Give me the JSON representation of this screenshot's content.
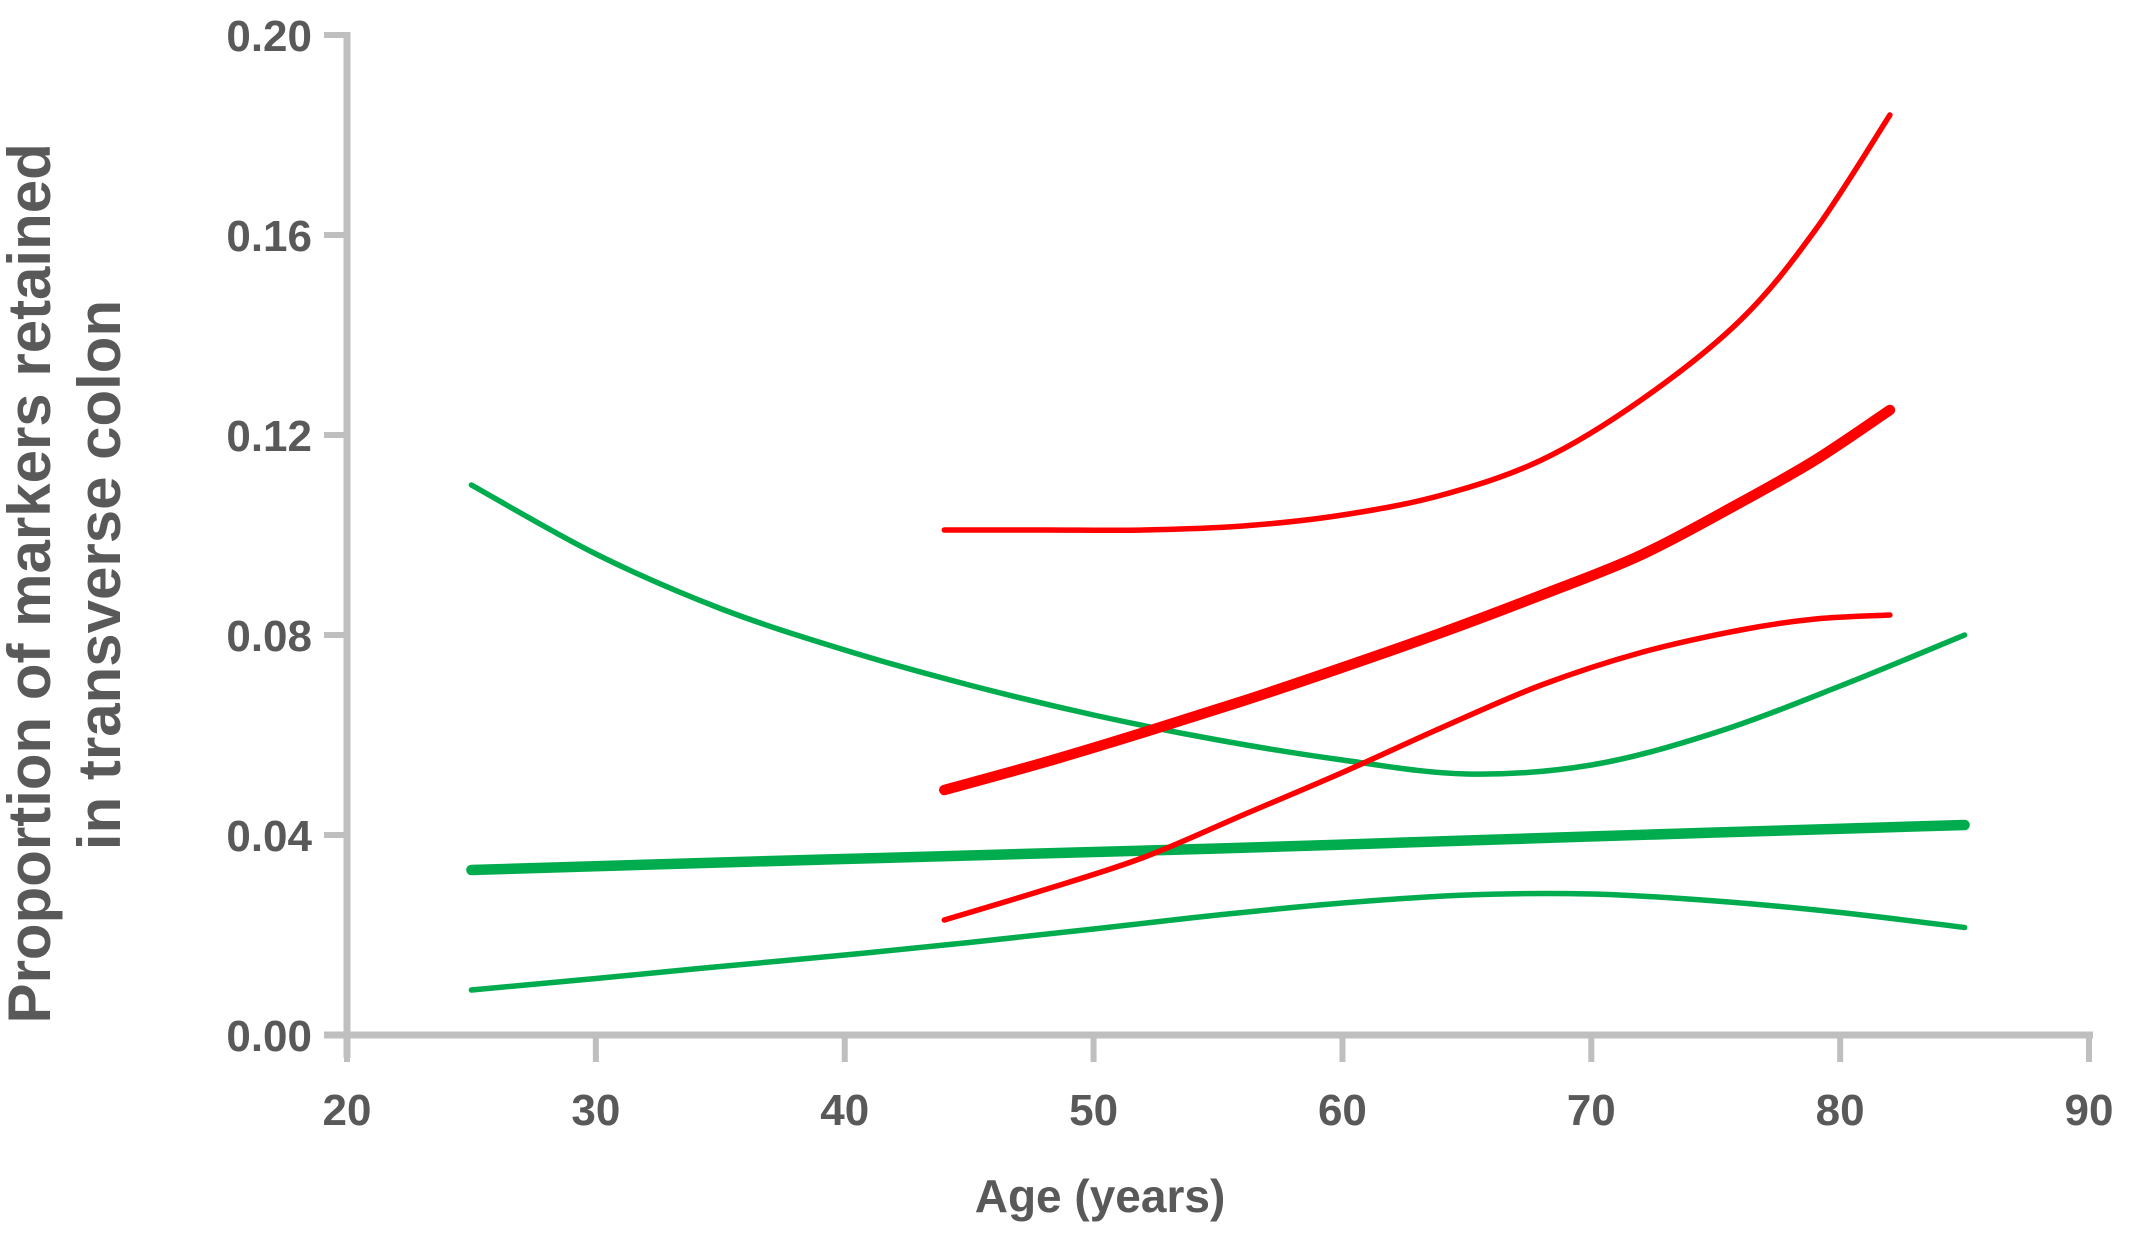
{
  "chart_data": {
    "type": "line",
    "title": "",
    "xlabel": "Age (years)",
    "ylabel_lines": [
      "Proportion of markers retained",
      "in transverse colon"
    ],
    "x_axis": {
      "min": 20,
      "max": 90,
      "step": 10,
      "tick_labels": [
        "20",
        "30",
        "40",
        "50",
        "60",
        "70",
        "80",
        "90"
      ]
    },
    "y_axis": {
      "min": 0.0,
      "max": 0.2,
      "step": 0.04,
      "tick_labels": [
        "0.00",
        "0.04",
        "0.08",
        "0.12",
        "0.16",
        "0.20"
      ]
    },
    "grid": false,
    "legend_position": "none",
    "axis_color": "#BFBFBF",
    "label_color": "#595959",
    "series": [
      {
        "name": "green-upper-ci",
        "color": "#00AC4E",
        "width": 5.5,
        "points": [
          [
            25,
            0.11
          ],
          [
            30,
            0.0962
          ],
          [
            35,
            0.0853
          ],
          [
            40,
            0.077
          ],
          [
            45,
            0.07
          ],
          [
            50,
            0.064
          ],
          [
            55,
            0.059
          ],
          [
            60,
            0.055
          ],
          [
            65,
            0.0522
          ],
          [
            70,
            0.054
          ],
          [
            75,
            0.0605
          ],
          [
            80,
            0.0698
          ],
          [
            85,
            0.08
          ]
        ]
      },
      {
        "name": "green-center-line",
        "color": "#00AC4E",
        "width": 10.5,
        "points": [
          [
            25,
            0.033
          ],
          [
            35,
            0.0345
          ],
          [
            45,
            0.0359
          ],
          [
            55,
            0.0373
          ],
          [
            65,
            0.0389
          ],
          [
            75,
            0.0405
          ],
          [
            85,
            0.042
          ]
        ]
      },
      {
        "name": "green-lower-ci",
        "color": "#00AC4E",
        "width": 5.5,
        "points": [
          [
            25,
            0.009
          ],
          [
            30,
            0.0113
          ],
          [
            35,
            0.0137
          ],
          [
            40,
            0.016
          ],
          [
            45,
            0.0185
          ],
          [
            50,
            0.0212
          ],
          [
            55,
            0.024
          ],
          [
            60,
            0.0264
          ],
          [
            65,
            0.028
          ],
          [
            70,
            0.0282
          ],
          [
            75,
            0.0268
          ],
          [
            80,
            0.0245
          ],
          [
            85,
            0.0215
          ]
        ]
      },
      {
        "name": "red-upper-ci",
        "color": "#FF0000",
        "width": 5.5,
        "points": [
          [
            44,
            0.101
          ],
          [
            48,
            0.101
          ],
          [
            52,
            0.101
          ],
          [
            56,
            0.1018
          ],
          [
            60,
            0.104
          ],
          [
            64,
            0.108
          ],
          [
            68,
            0.115
          ],
          [
            72,
            0.127
          ],
          [
            76,
            0.143
          ],
          [
            79,
            0.161
          ],
          [
            82,
            0.184
          ]
        ]
      },
      {
        "name": "red-center-line",
        "color": "#FF0000",
        "width": 10.5,
        "points": [
          [
            44,
            0.049
          ],
          [
            48,
            0.0545
          ],
          [
            52,
            0.0605
          ],
          [
            56,
            0.0668
          ],
          [
            60,
            0.0735
          ],
          [
            64,
            0.0805
          ],
          [
            68,
            0.088
          ],
          [
            72,
            0.096
          ],
          [
            76,
            0.1065
          ],
          [
            79,
            0.115
          ],
          [
            82,
            0.125
          ]
        ]
      },
      {
        "name": "red-lower-ci",
        "color": "#FF0000",
        "width": 5.5,
        "points": [
          [
            44,
            0.023
          ],
          [
            48,
            0.029
          ],
          [
            52,
            0.0355
          ],
          [
            56,
            0.044
          ],
          [
            60,
            0.0525
          ],
          [
            64,
            0.0615
          ],
          [
            68,
            0.07
          ],
          [
            72,
            0.0765
          ],
          [
            76,
            0.081
          ],
          [
            79,
            0.0832
          ],
          [
            82,
            0.084
          ]
        ]
      }
    ]
  }
}
